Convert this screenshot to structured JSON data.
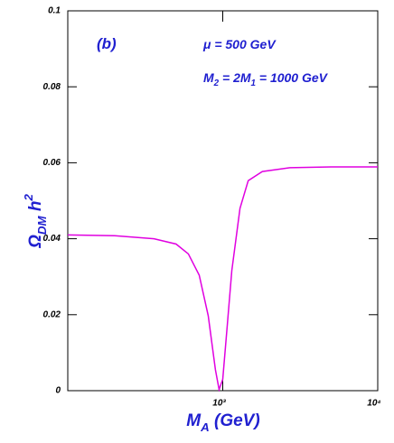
{
  "chart_data": {
    "type": "line",
    "x_label": {
      "parts": [
        {
          "text": "M"
        },
        {
          "text": "A",
          "sub": true
        },
        {
          "text": " (GeV)"
        }
      ]
    },
    "y_label": {
      "parts": [
        {
          "text": "Ω"
        },
        {
          "text": "DM",
          "sub": true
        },
        {
          "text": " h"
        },
        {
          "text": "2",
          "sup": true
        }
      ]
    },
    "annotations": [
      {
        "parts": [
          {
            "text": "(b)"
          }
        ]
      },
      {
        "parts": [
          {
            "text": "μ = 500 GeV"
          }
        ]
      },
      {
        "parts": [
          {
            "text": "M"
          },
          {
            "text": "2",
            "sub": true
          },
          {
            "text": " = 2M"
          },
          {
            "text": "1",
            "sub": true
          },
          {
            "text": " = 1000 GeV"
          }
        ]
      }
    ],
    "x": [
      100,
      200,
      360,
      500,
      600,
      705,
      806,
      897,
      947,
      1000,
      1070,
      1144,
      1292,
      1460,
      1800,
      2710,
      5000,
      10000
    ],
    "series": [
      {
        "color": "#e000e0",
        "values": [
          0.041,
          0.0408,
          0.04,
          0.0386,
          0.036,
          0.0304,
          0.0197,
          0.0055,
          0.0003,
          0.003,
          0.0173,
          0.0316,
          0.048,
          0.0553,
          0.0577,
          0.0587,
          0.0589,
          0.0589
        ]
      }
    ],
    "xlim": [
      100,
      10000
    ],
    "xscale": "log",
    "xticks": [
      {
        "value": 1000,
        "label": "10³"
      },
      {
        "value": 10000,
        "label": "10⁴"
      }
    ],
    "ylim": [
      0,
      0.1
    ],
    "yticks": [
      0,
      0.02,
      0.04,
      0.06,
      0.08,
      0.1
    ]
  }
}
